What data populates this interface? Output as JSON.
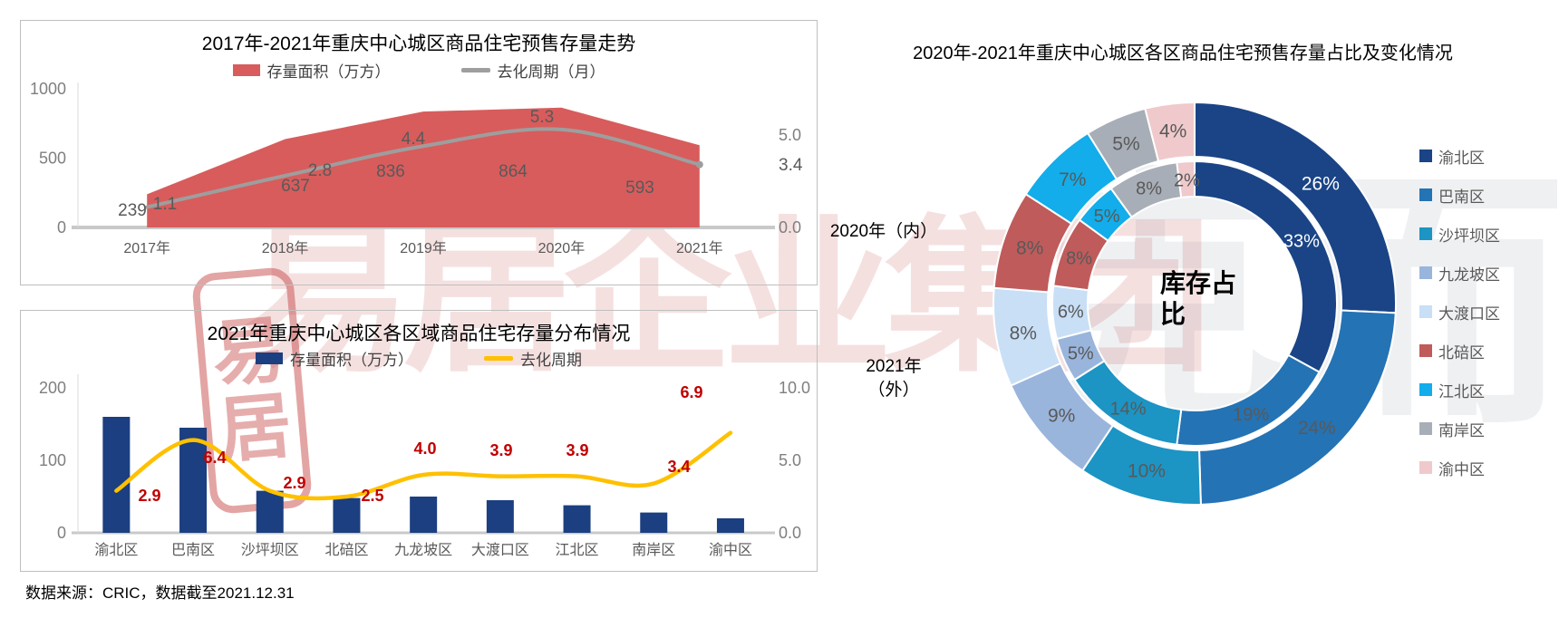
{
  "footer": {
    "source_note": "数据来源：CRIC，数据截至2021.12.31"
  },
  "watermark": {
    "text_red": "易居企业集团",
    "text_gray": "克而瑞",
    "seal_char1": "易",
    "seal_char2": "居"
  },
  "chart_data": [
    {
      "type": "area",
      "title": "2017年-2021年重庆中心城区商品住宅预售存量走势",
      "categories": [
        "2017年",
        "2018年",
        "2019年",
        "2020年",
        "2021年"
      ],
      "series": [
        {
          "name": "存量面积（万方）",
          "chart": "area",
          "axis": "left",
          "color": "#D85C5C",
          "values": [
            239,
            637,
            836,
            864,
            593
          ]
        },
        {
          "name": "去化周期（月）",
          "chart": "line",
          "axis": "right",
          "color": "#9E9E9E",
          "values": [
            1.1,
            2.8,
            4.4,
            5.3,
            3.4
          ]
        }
      ],
      "left_axis": {
        "ticks": [
          "0",
          "500",
          "1000"
        ],
        "max": 1000
      },
      "right_axis": {
        "ticks": [
          "0.0",
          "5.0"
        ],
        "max": 5.0
      },
      "grid": false,
      "legend_position": "top"
    },
    {
      "type": "bar",
      "title": "2021年重庆中心城区各区域商品住宅存量分布情况",
      "categories": [
        "渝北区",
        "巴南区",
        "沙坪坝区",
        "北碚区",
        "九龙坡区",
        "大渡口区",
        "江北区",
        "南岸区",
        "渝中区"
      ],
      "series": [
        {
          "name": "存量面积（万方）",
          "chart": "bar",
          "axis": "left",
          "color": "#1B3F80",
          "values": [
            160,
            145,
            58,
            48,
            50,
            45,
            38,
            28,
            20
          ]
        },
        {
          "name": "去化周期",
          "chart": "line",
          "axis": "right",
          "color": "#FFC000",
          "values": [
            2.9,
            6.4,
            2.9,
            2.5,
            4.0,
            3.9,
            3.9,
            3.4,
            6.9
          ],
          "label_color": "#C00000"
        }
      ],
      "left_axis": {
        "ticks": [
          "0",
          "100",
          "200"
        ],
        "max": 250
      },
      "right_axis": {
        "ticks": [
          "0.0",
          "5.0",
          "10.0"
        ],
        "max": 10.0
      },
      "grid": false,
      "legend_position": "top"
    },
    {
      "type": "pie",
      "subtype": "double-donut",
      "title": "2020年-2021年重庆中心城区各区商品住宅预售存量占比及变化情况",
      "center_label": "库存占比",
      "inner_ring_label": "2020年（内）",
      "outer_ring_label_line1": "2021年",
      "outer_ring_label_line2": "（外）",
      "legend": [
        {
          "name": "渝北区",
          "color": "#1A4486"
        },
        {
          "name": "巴南区",
          "color": "#2473B5"
        },
        {
          "name": "沙坪坝区",
          "color": "#1C94C4"
        },
        {
          "name": "九龙坡区",
          "color": "#9AB5DC"
        },
        {
          "name": "大渡口区",
          "color": "#C8DFF6"
        },
        {
          "name": "北碚区",
          "color": "#BF5B5B"
        },
        {
          "name": "江北区",
          "color": "#12ADEA"
        },
        {
          "name": "南岸区",
          "color": "#A8AEB7"
        },
        {
          "name": "渝中区",
          "color": "#EFC9CB"
        }
      ],
      "inner_2020_percent": [
        33,
        19,
        14,
        5,
        6,
        8,
        5,
        8,
        2
      ],
      "outer_2021_percent": [
        26,
        24,
        10,
        9,
        8,
        8,
        7,
        5,
        4
      ],
      "label_format": "percent",
      "legend_position": "right"
    }
  ]
}
